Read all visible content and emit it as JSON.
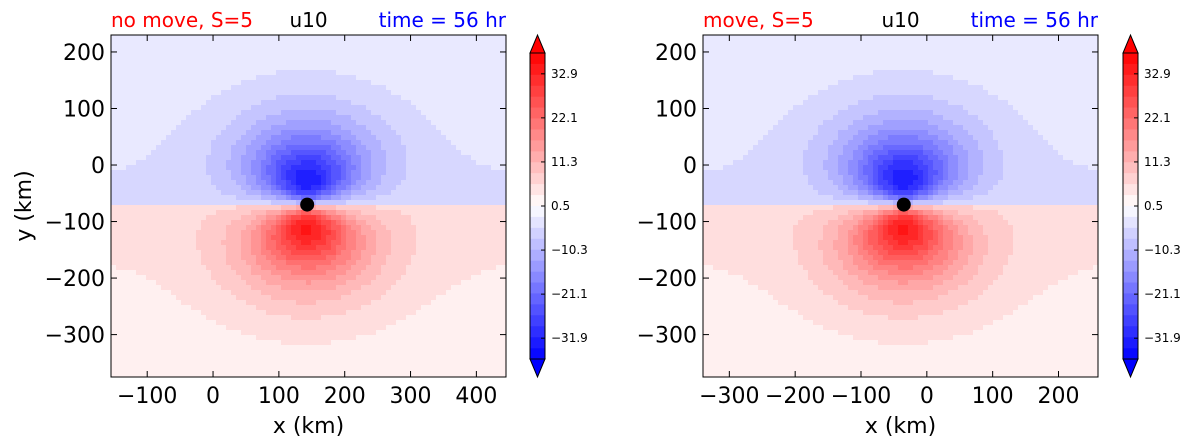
{
  "chart_data": [
    {
      "type": "contour",
      "variable_label": "u10",
      "case_label": "no move, S=5",
      "time_label": "time = 56 hr",
      "case_color": "#ff0000",
      "time_color": "#0000ff",
      "xlabel": "x (km)",
      "ylabel": "y (km)",
      "xlim": [
        -155,
        445
      ],
      "ylim": [
        -375,
        230
      ],
      "xticks": [
        -100,
        0,
        100,
        200,
        300,
        400
      ],
      "xtick_labels": [
        "−100",
        "0",
        "100",
        "200",
        "300",
        "400"
      ],
      "yticks": [
        200,
        100,
        0,
        -100,
        -200,
        -300
      ],
      "ytick_labels": [
        "200",
        "100",
        "0",
        "−100",
        "−200",
        "−300"
      ],
      "center_marker": {
        "x": 143,
        "y": -70
      },
      "colorbar": {
        "range": [
          -37,
          38
        ],
        "ticks": [
          32.9,
          22.1,
          11.3,
          0.5,
          -10.3,
          -21.1,
          -31.9
        ],
        "tick_labels": [
          "32.9",
          "22.1",
          "11.3",
          "0.5",
          "−10.3",
          "−21.1",
          "−31.9"
        ],
        "extend": "both",
        "colormap": "bwr"
      }
    },
    {
      "type": "contour",
      "variable_label": "u10",
      "case_label": "move, S=5",
      "time_label": "time = 56 hr",
      "case_color": "#ff0000",
      "time_color": "#0000ff",
      "xlabel": "x (km)",
      "ylabel": "",
      "xlim": [
        -340,
        260
      ],
      "ylim": [
        -375,
        230
      ],
      "xticks": [
        -300,
        -200,
        -100,
        0,
        100,
        200
      ],
      "xtick_labels": [
        "−300",
        "−200",
        "−100",
        "0",
        "100",
        "200"
      ],
      "yticks": [
        200,
        100,
        0,
        -100,
        -200,
        -300
      ],
      "ytick_labels": [
        "200",
        "100",
        "0",
        "−100",
        "−200",
        "−300"
      ],
      "center_marker": {
        "x": -35,
        "y": -70
      },
      "colorbar": {
        "range": [
          -37,
          38
        ],
        "ticks": [
          32.9,
          22.1,
          11.3,
          0.5,
          -10.3,
          -21.1,
          -31.9
        ],
        "tick_labels": [
          "32.9",
          "22.1",
          "11.3",
          "0.5",
          "−10.3",
          "−21.1",
          "−31.9"
        ],
        "extend": "both",
        "colormap": "bwr"
      }
    }
  ]
}
